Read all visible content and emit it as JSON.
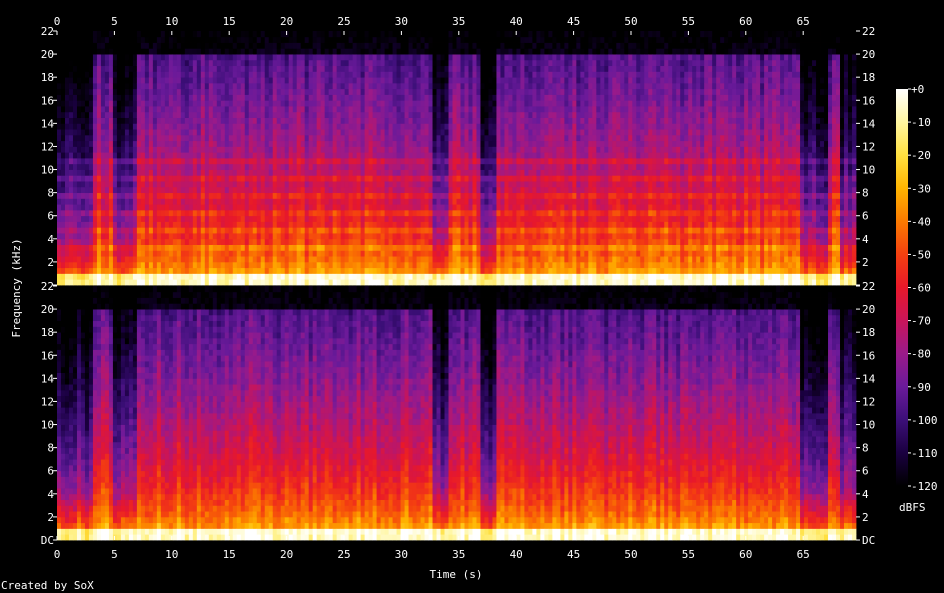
{
  "chart_data": {
    "type": "heatmap",
    "title": "",
    "xlabel": "Time (s)",
    "ylabel": "Frequency (kHz)",
    "xlim": [
      0,
      69.6
    ],
    "ylim": [
      0,
      22
    ],
    "x_ticks": [
      0,
      5,
      10,
      15,
      20,
      25,
      30,
      35,
      40,
      45,
      50,
      55,
      60,
      65
    ],
    "x_tick_labels": [
      "0",
      "5",
      "10",
      "15",
      "20",
      "25",
      "30",
      "35",
      "40",
      "45",
      "50",
      "55",
      "60",
      "65"
    ],
    "y_ticks": [
      0,
      2,
      4,
      6,
      8,
      10,
      12,
      14,
      16,
      18,
      20,
      22
    ],
    "top_y_tick_labels": [
      "",
      "2",
      "4",
      "6",
      "8",
      "10",
      "12",
      "14",
      "16",
      "18",
      "20",
      "22"
    ],
    "bottom_y_tick_labels": [
      "DC",
      "2",
      "4",
      "6",
      "8",
      "10",
      "12",
      "14",
      "16",
      "18",
      "20",
      "22"
    ],
    "channels": 2,
    "colorbar": {
      "label": "dBFS",
      "range": [
        -120,
        0
      ],
      "ticks": [
        0,
        -10,
        -20,
        -30,
        -40,
        -50,
        -60,
        -70,
        -80,
        -90,
        -100,
        -110,
        -120
      ],
      "tick_labels": [
        "+0",
        "-10",
        "-20",
        "-30",
        "-40",
        "-50",
        "-60",
        "-70",
        "-80",
        "-90",
        "-100",
        "-110",
        "-120"
      ],
      "colors": [
        "#000000",
        "#1a0040",
        "#3c0f78",
        "#6a1a9a",
        "#9a1a8a",
        "#c8155a",
        "#e8182a",
        "#f44010",
        "#fb7a00",
        "#ffb400",
        "#ffe040",
        "#fff6a0",
        "#ffffff"
      ]
    },
    "quiet_segments_s": [
      [
        0,
        3.2
      ],
      [
        5.0,
        7.0
      ],
      [
        32.8,
        34.2
      ],
      [
        36.8,
        38.2
      ],
      [
        64.6,
        67.2
      ],
      [
        68.2,
        69.6
      ]
    ],
    "footer": "Created by SoX"
  }
}
